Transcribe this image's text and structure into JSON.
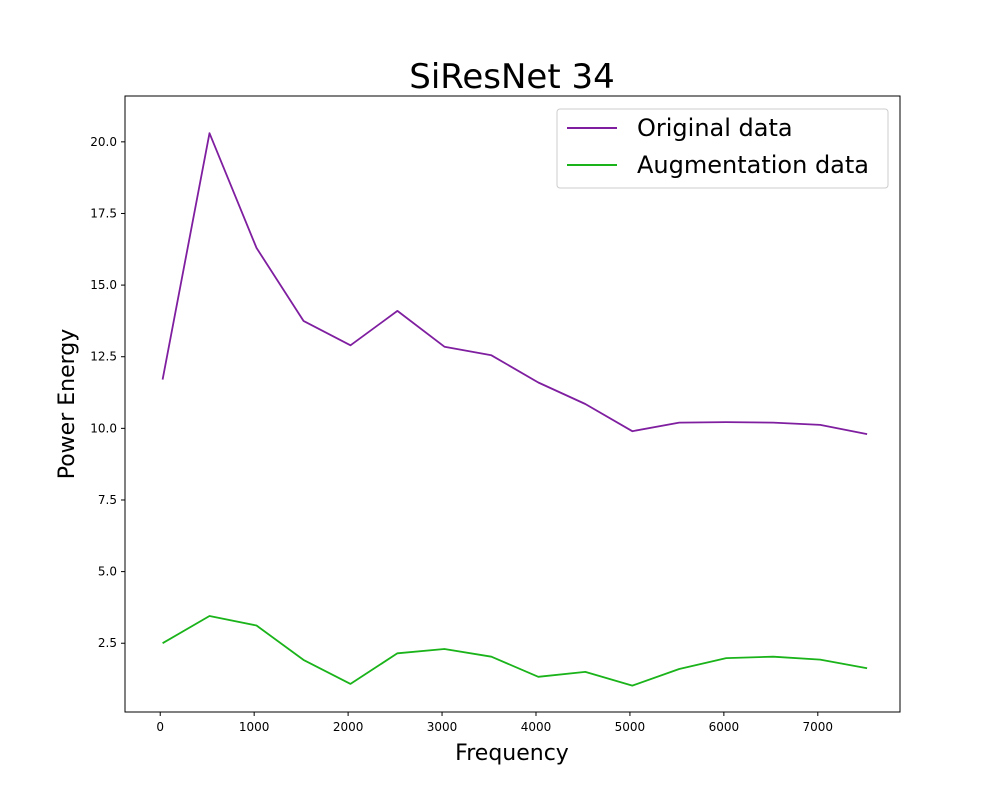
{
  "chart_data": {
    "type": "line",
    "title": "SiResNet 34",
    "xlabel": "Frequency",
    "ylabel": "Power Energy",
    "xlim": [
      -375,
      7875
    ],
    "ylim": [
      0.1,
      21.6
    ],
    "xticks": [
      0,
      1000,
      2000,
      3000,
      4000,
      5000,
      6000,
      7000
    ],
    "yticks": [
      2.5,
      5.0,
      7.5,
      10.0,
      12.5,
      15.0,
      17.5,
      20.0
    ],
    "xtick_labels": [
      "0",
      "1000",
      "2000",
      "3000",
      "4000",
      "5000",
      "6000",
      "7000"
    ],
    "ytick_labels": [
      "2.5",
      "5.0",
      "7.5",
      "10.0",
      "12.5",
      "15.0",
      "17.5",
      "20.0"
    ],
    "grid": false,
    "legend_position": "top-right",
    "x": [
      25,
      525,
      1025,
      1525,
      2025,
      2525,
      3025,
      3525,
      4025,
      4525,
      5025,
      5525,
      6025,
      6525,
      7025,
      7525
    ],
    "series": [
      {
        "name": "Original data",
        "color": "#7f1fa0",
        "values": [
          11.7,
          20.3,
          16.3,
          13.75,
          12.9,
          14.1,
          12.85,
          12.55,
          11.6,
          10.85,
          9.9,
          10.2,
          10.22,
          10.2,
          10.12,
          9.8
        ]
      },
      {
        "name": "Augmentation data",
        "color": "#1ab31a",
        "values": [
          2.5,
          3.45,
          3.12,
          1.92,
          1.08,
          2.15,
          2.3,
          2.03,
          1.33,
          1.5,
          1.02,
          1.6,
          1.98,
          2.03,
          1.93,
          1.63
        ]
      }
    ]
  }
}
